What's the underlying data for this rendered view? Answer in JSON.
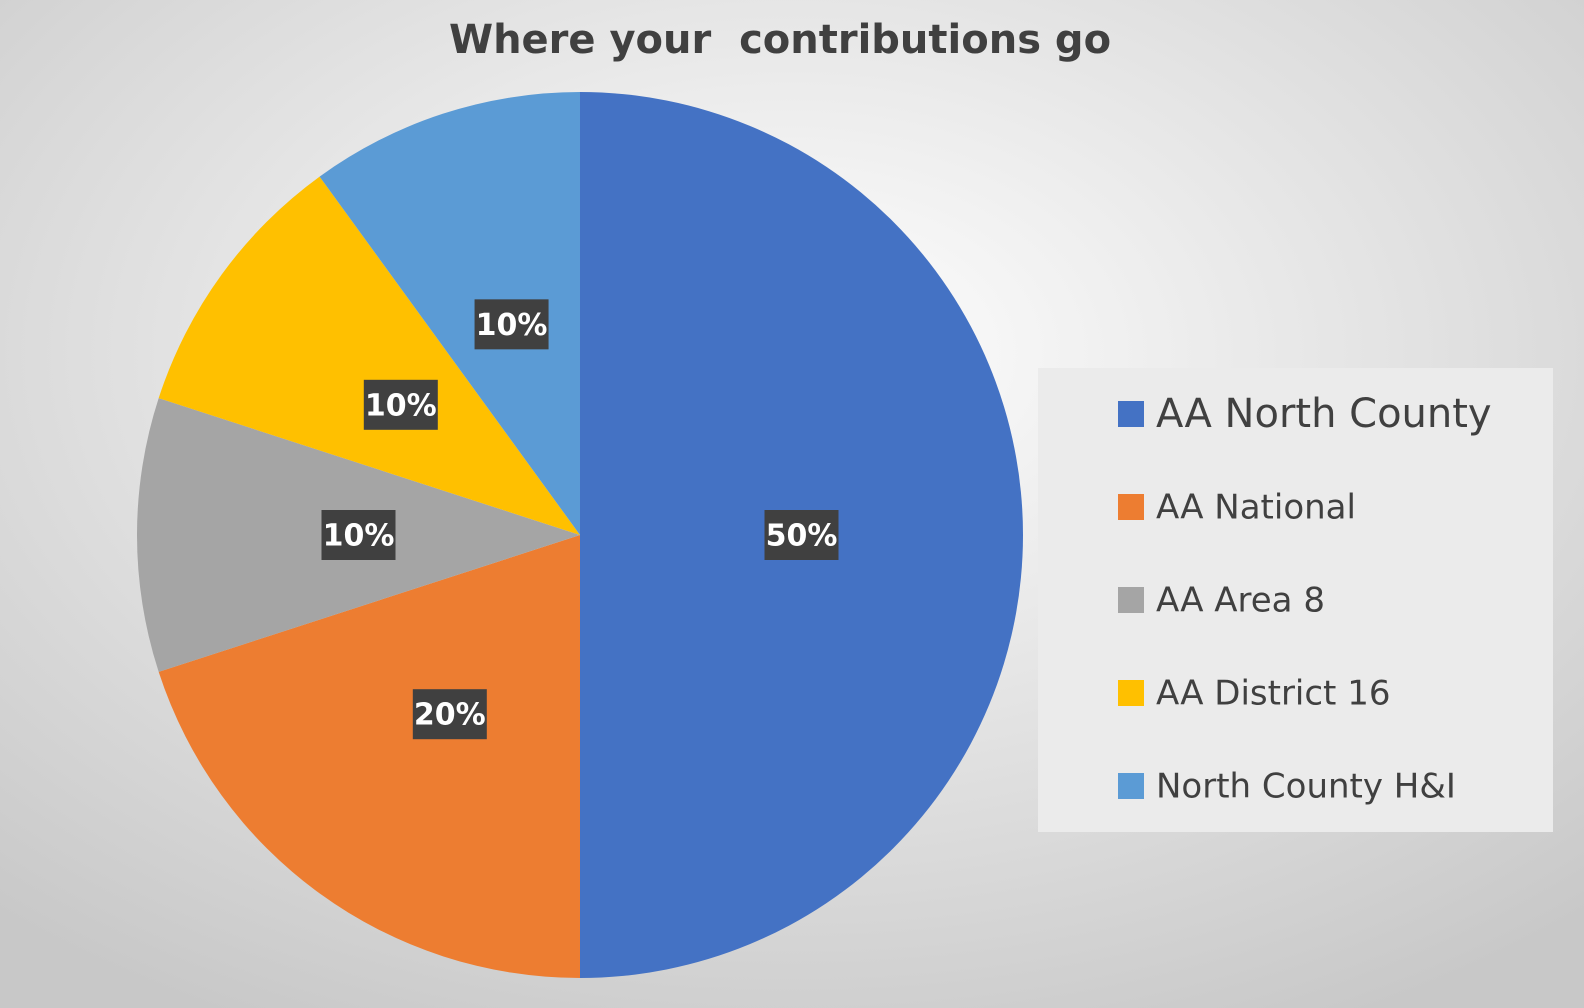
{
  "chart_data": {
    "type": "pie",
    "title": "Where your  contributions go",
    "categories": [
      "AA North County",
      "AA National",
      "AA Area 8",
      "AA District 16",
      "North County H&I"
    ],
    "values": [
      50,
      20,
      10,
      10,
      10
    ],
    "value_labels": [
      "50%",
      "20%",
      "10%",
      "10%",
      "10%"
    ],
    "colors": [
      "#4472c4",
      "#ed7d31",
      "#a5a5a5",
      "#ffc000",
      "#5b9bd5"
    ],
    "legend": "right"
  }
}
